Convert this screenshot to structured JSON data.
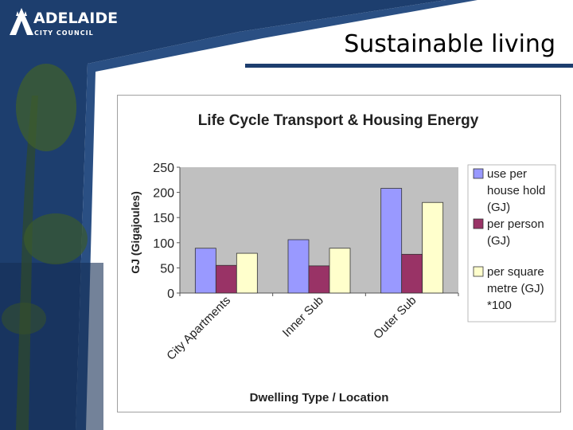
{
  "slide": {
    "title": "Sustainable living",
    "logo": {
      "name": "ADELAIDE",
      "subtitle": "CITY COUNCIL"
    }
  },
  "colors": {
    "brand_blue": "#1d3e6e",
    "series_household": "#9999ff",
    "series_person": "#993366",
    "series_sqm": "#ffffcc",
    "plot_bg": "#c0c0c0"
  },
  "chart_data": {
    "type": "bar",
    "title": "Life Cycle Transport & Housing Energy",
    "xlabel": "Dwelling Type / Location",
    "ylabel": "GJ (Gigajoules)",
    "ylim": [
      0,
      250
    ],
    "yticks": [
      0,
      50,
      100,
      150,
      200,
      250
    ],
    "grid": false,
    "legend_position": "right",
    "categories": [
      "City Apartments",
      "Inner Sub",
      "Outer Sub"
    ],
    "series": [
      {
        "name": "use per house hold (GJ)",
        "legend_lines": [
          "use per",
          "house hold",
          "(GJ)"
        ],
        "values": [
          89,
          106,
          208
        ]
      },
      {
        "name": "per person (GJ)",
        "legend_lines": [
          "per person",
          "(GJ)"
        ],
        "values": [
          55,
          54,
          77
        ]
      },
      {
        "name": "per square metre (GJ) *100",
        "legend_lines": [
          "per square",
          "metre (GJ)",
          "*100"
        ],
        "values": [
          79,
          89,
          180
        ]
      }
    ]
  }
}
